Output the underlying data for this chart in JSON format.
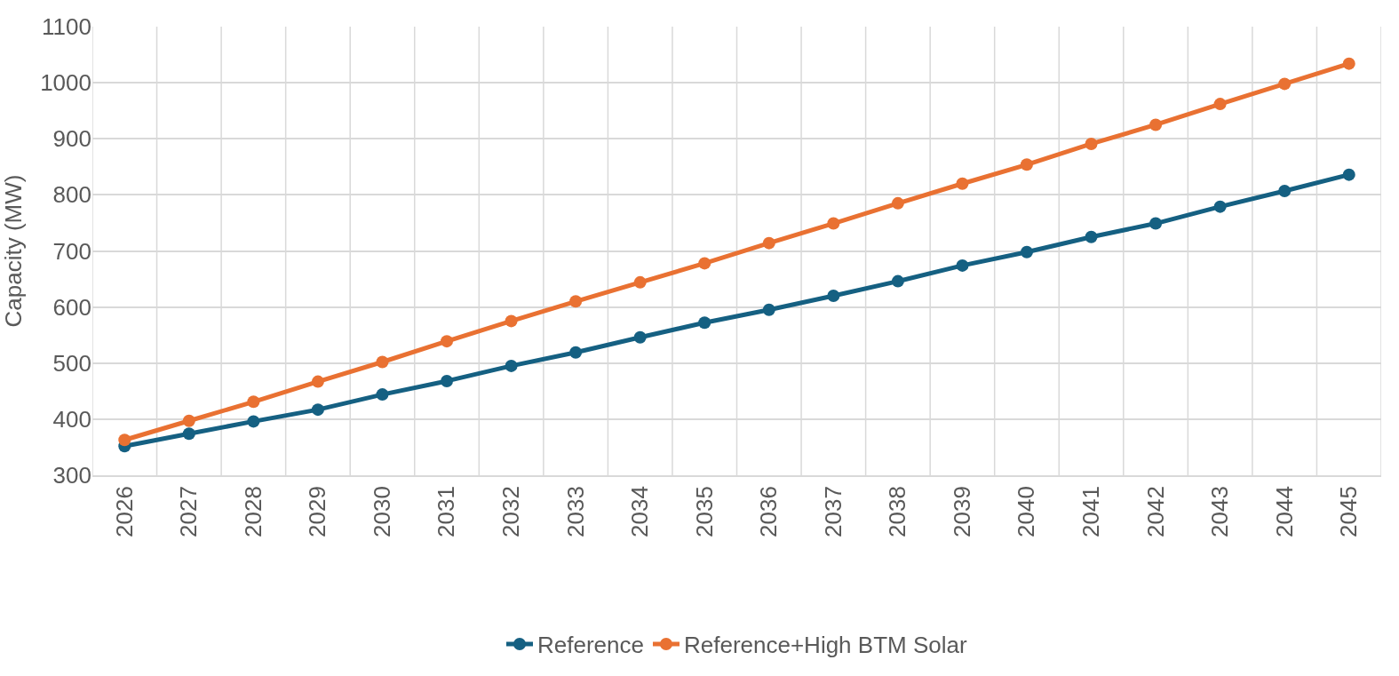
{
  "chart_data": {
    "type": "line",
    "ylabel": "Capacity (MW)",
    "categories": [
      "2026",
      "2027",
      "2028",
      "2029",
      "2030",
      "2031",
      "2032",
      "2033",
      "2034",
      "2035",
      "2036",
      "2037",
      "2038",
      "2039",
      "2040",
      "2041",
      "2042",
      "2043",
      "2044",
      "2045"
    ],
    "series": [
      {
        "name": "Reference",
        "color": "#156082",
        "values": [
          352,
          374,
          396,
          417,
          444,
          468,
          495,
          519,
          546,
          572,
          595,
          620,
          646,
          674,
          698,
          725,
          749,
          779,
          807,
          836
        ]
      },
      {
        "name": "Reference+High BTM Solar",
        "color": "#e97132",
        "values": [
          363,
          397,
          431,
          467,
          502,
          539,
          575,
          610,
          644,
          678,
          714,
          749,
          785,
          820,
          854,
          891,
          925,
          962,
          998,
          1034
        ]
      }
    ],
    "ylim": [
      300,
      1100
    ],
    "yticks": [
      300,
      400,
      500,
      600,
      700,
      800,
      900,
      1000,
      1100
    ],
    "grid": true,
    "legend": "bottom",
    "marker": "circle",
    "line_style": "solid"
  }
}
